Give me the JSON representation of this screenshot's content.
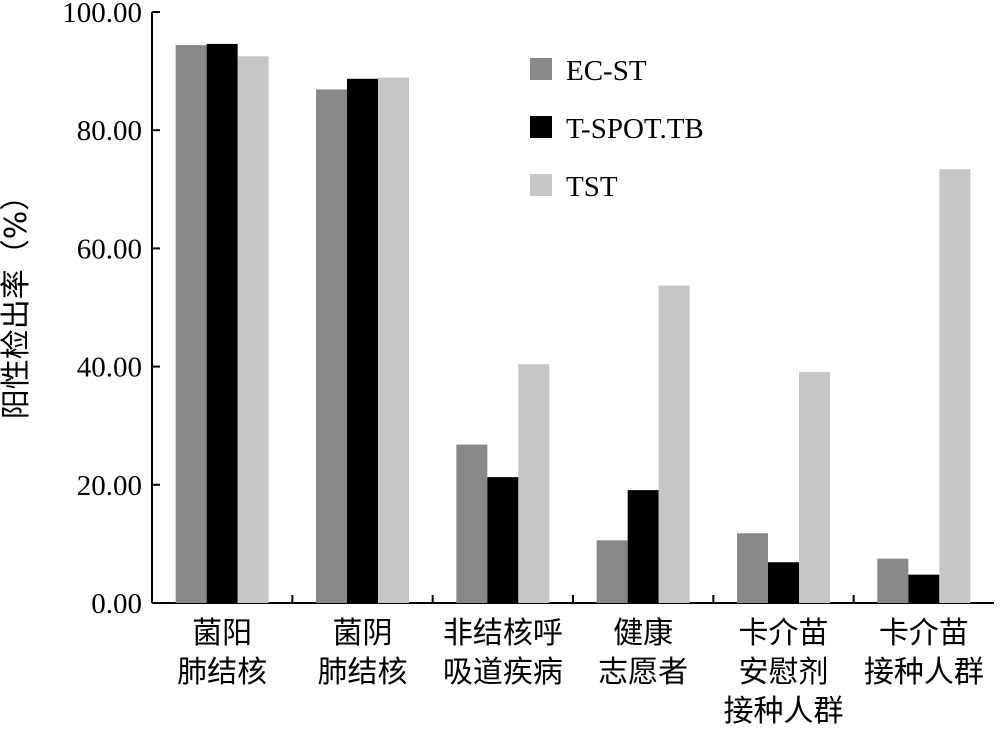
{
  "chart_data": {
    "type": "bar",
    "title": "",
    "ylabel": "阳性检出率（%）",
    "xlabel": "",
    "ylim": [
      0,
      100
    ],
    "yticks": [
      "0.00",
      "20.00",
      "40.00",
      "60.00",
      "80.00",
      "100.00"
    ],
    "categories": [
      [
        "菌阳",
        "肺结核"
      ],
      [
        "菌阴",
        "肺结核"
      ],
      [
        "非结核呼",
        "吸道疾病"
      ],
      [
        "健康",
        "志愿者"
      ],
      [
        "卡介苗",
        "安慰剂",
        "接种人群"
      ],
      [
        "卡介苗",
        "接种人群"
      ]
    ],
    "series": [
      {
        "name": "EC-ST",
        "color": "#888888",
        "values": [
          94.4,
          86.9,
          26.8,
          10.6,
          11.8,
          7.5
        ]
      },
      {
        "name": "T-SPOT.TB",
        "color": "#000000",
        "values": [
          94.6,
          88.7,
          21.3,
          19.1,
          6.9,
          4.8
        ]
      },
      {
        "name": "TST",
        "color": "#c6c6c6",
        "values": [
          92.5,
          88.9,
          40.4,
          53.7,
          39.1,
          73.4
        ]
      }
    ],
    "legend_position": "top-right",
    "grid": false
  }
}
